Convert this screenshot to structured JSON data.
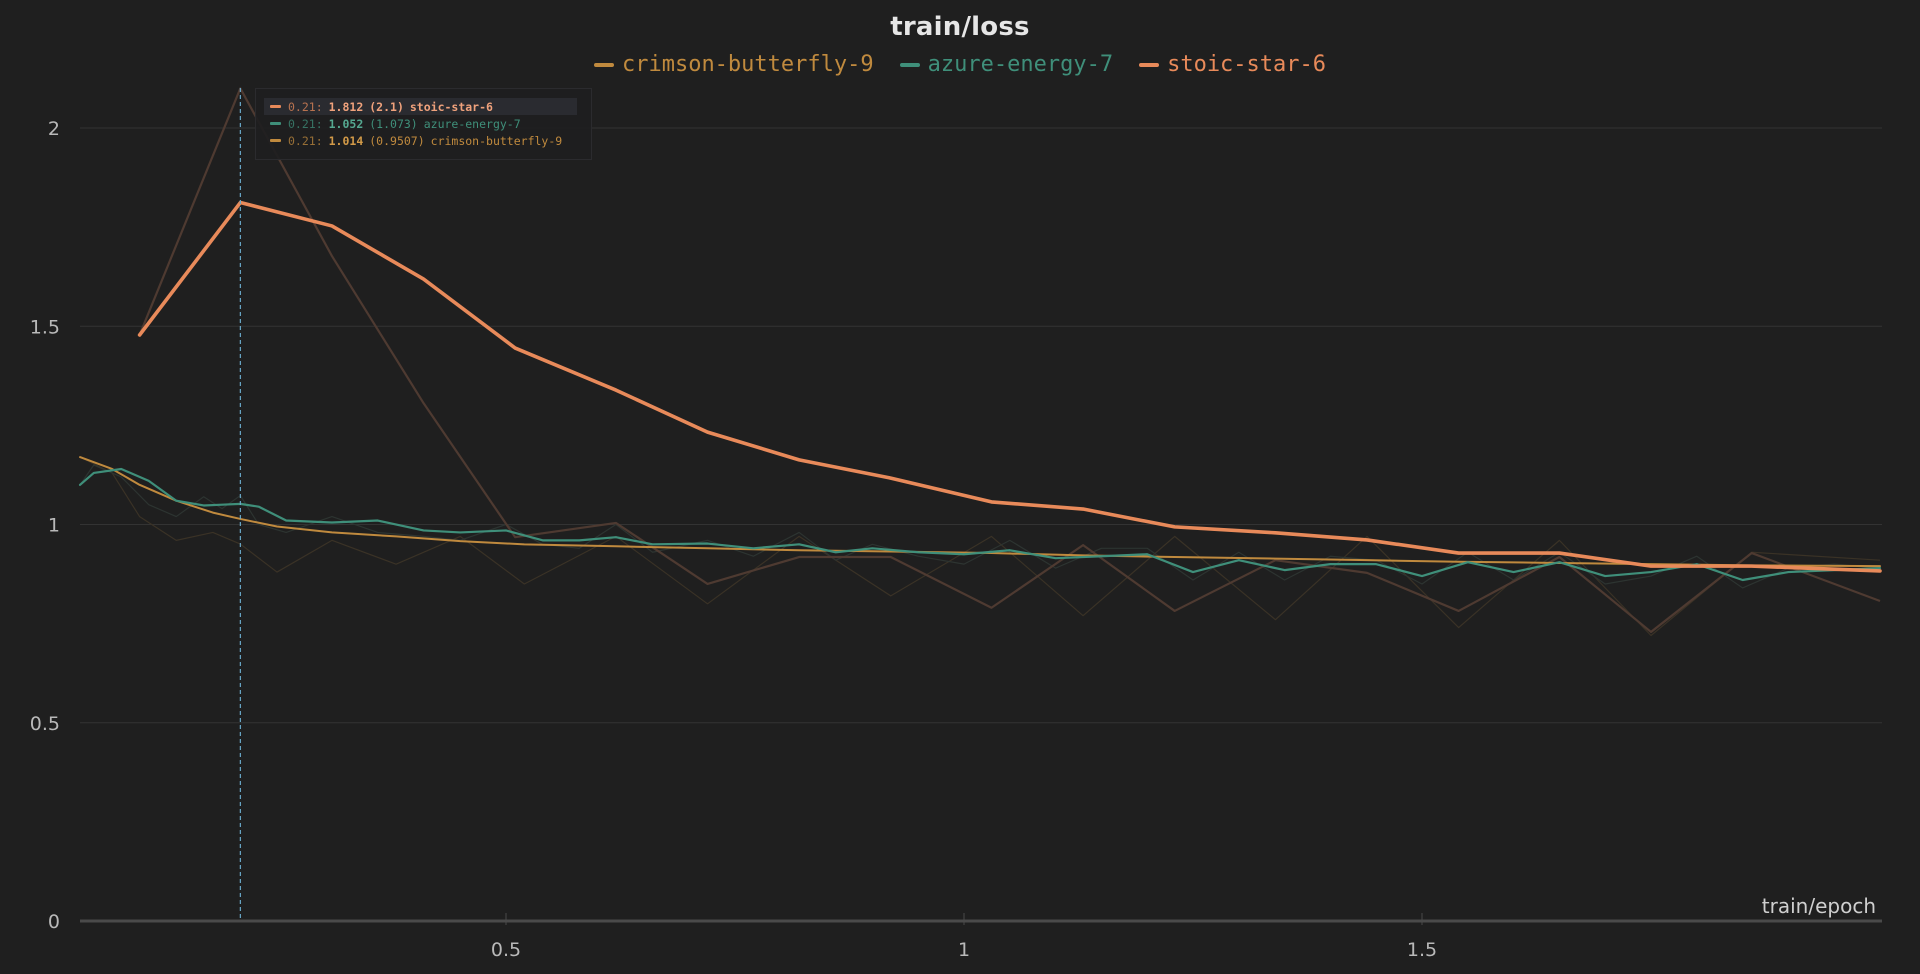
{
  "chart_data": {
    "type": "line",
    "title": "train/loss",
    "xlabel": "train/epoch",
    "ylabel": "",
    "xlim": [
      0,
      2.0
    ],
    "ylim": [
      0,
      2.1
    ],
    "x_ticks": [
      0.5,
      1,
      1.5
    ],
    "x_tick_labels": [
      "0.5",
      "1",
      "1.5"
    ],
    "y_ticks": [
      0,
      0.5,
      1,
      1.5,
      2
    ],
    "y_tick_labels": [
      "0",
      "0.5",
      "1",
      "1.5",
      "2"
    ],
    "grid": true,
    "legend_position": "top",
    "series": [
      {
        "name": "crimson-butterfly-9",
        "color": "#c08a3e",
        "x": [
          0.035,
          0.07,
          0.1,
          0.14,
          0.18,
          0.21,
          0.25,
          0.31,
          0.38,
          0.45,
          0.52,
          0.62,
          0.72,
          0.82,
          0.92,
          1.03,
          1.13,
          1.23,
          1.34,
          1.44,
          1.54,
          1.65,
          1.75,
          1.86,
          2.0
        ],
        "values": [
          1.17,
          1.14,
          1.1,
          1.06,
          1.03,
          1.014,
          0.995,
          0.98,
          0.97,
          0.958,
          0.95,
          0.945,
          0.94,
          0.935,
          0.932,
          0.928,
          0.922,
          0.918,
          0.914,
          0.91,
          0.906,
          0.903,
          0.9,
          0.897,
          0.895
        ],
        "raw_values": [
          1.17,
          1.13,
          1.02,
          0.96,
          0.98,
          0.9507,
          0.88,
          0.96,
          0.9,
          0.97,
          0.85,
          0.97,
          0.8,
          0.97,
          0.82,
          0.97,
          0.77,
          0.97,
          0.76,
          0.97,
          0.74,
          0.96,
          0.72,
          0.93,
          0.91
        ]
      },
      {
        "name": "azure-energy-7",
        "color": "#3f8f7a",
        "x": [
          0.035,
          0.05,
          0.08,
          0.11,
          0.14,
          0.17,
          0.19,
          0.21,
          0.23,
          0.26,
          0.31,
          0.36,
          0.41,
          0.45,
          0.5,
          0.54,
          0.58,
          0.62,
          0.66,
          0.72,
          0.77,
          0.82,
          0.86,
          0.9,
          0.95,
          1.0,
          1.05,
          1.1,
          1.15,
          1.2,
          1.25,
          1.3,
          1.35,
          1.4,
          1.45,
          1.5,
          1.55,
          1.6,
          1.65,
          1.7,
          1.75,
          1.8,
          1.85,
          1.9,
          1.95,
          2.0
        ],
        "values": [
          1.1,
          1.13,
          1.14,
          1.11,
          1.06,
          1.048,
          1.05,
          1.052,
          1.045,
          1.01,
          1.005,
          1.01,
          0.985,
          0.98,
          0.985,
          0.96,
          0.96,
          0.968,
          0.95,
          0.952,
          0.94,
          0.95,
          0.93,
          0.94,
          0.93,
          0.925,
          0.935,
          0.915,
          0.92,
          0.925,
          0.88,
          0.91,
          0.885,
          0.9,
          0.9,
          0.87,
          0.905,
          0.88,
          0.905,
          0.87,
          0.88,
          0.9,
          0.86,
          0.88,
          0.885,
          0.89
        ],
        "raw_values": [
          1.1,
          1.15,
          1.12,
          1.05,
          1.02,
          1.07,
          1.04,
          1.073,
          1.0,
          0.98,
          1.02,
          0.98,
          0.97,
          0.96,
          1.0,
          0.95,
          0.94,
          1.0,
          0.93,
          0.96,
          0.92,
          0.98,
          0.91,
          0.95,
          0.92,
          0.9,
          0.96,
          0.89,
          0.94,
          0.94,
          0.86,
          0.93,
          0.86,
          0.92,
          0.91,
          0.85,
          0.93,
          0.86,
          0.93,
          0.85,
          0.87,
          0.92,
          0.84,
          0.89,
          0.9,
          0.89
        ]
      },
      {
        "name": "stoic-star-6",
        "color": "#e88a5a",
        "x": [
          0.1,
          0.21,
          0.31,
          0.41,
          0.51,
          0.62,
          0.72,
          0.82,
          0.92,
          1.03,
          1.13,
          1.23,
          1.34,
          1.44,
          1.54,
          1.65,
          1.75,
          1.86,
          2.0
        ],
        "values": [
          1.478,
          1.812,
          1.753,
          1.619,
          1.445,
          1.339,
          1.233,
          1.163,
          1.117,
          1.057,
          1.039,
          0.994,
          0.979,
          0.961,
          0.928,
          0.928,
          0.895,
          0.895,
          0.883
        ],
        "raw_values": [
          1.478,
          2.1,
          1.677,
          1.306,
          0.968,
          1.004,
          0.85,
          0.918,
          0.918,
          0.79,
          0.948,
          0.782,
          0.91,
          0.878,
          0.782,
          0.918,
          0.729,
          0.928,
          0.807
        ]
      }
    ],
    "hover": {
      "x": 0.21,
      "rows": [
        {
          "series": "stoic-star-6",
          "x_label": "0.21:",
          "value": "1.812",
          "raw": "(2.1)",
          "color": "#e88a5a",
          "highlighted": true
        },
        {
          "series": "azure-energy-7",
          "x_label": "0.21:",
          "value": "1.052",
          "raw": "(1.073)",
          "color": "#3f8f7a",
          "highlighted": false
        },
        {
          "series": "crimson-butterfly-9",
          "x_label": "0.21:",
          "value": "1.014",
          "raw": "(0.9507)",
          "color": "#c08a3e",
          "highlighted": false
        }
      ]
    }
  },
  "legend": [
    {
      "label": "crimson-butterfly-9",
      "color": "#c08a3e"
    },
    {
      "label": "azure-energy-7",
      "color": "#3f8f7a"
    },
    {
      "label": "stoic-star-6",
      "color": "#e88a5a"
    }
  ]
}
